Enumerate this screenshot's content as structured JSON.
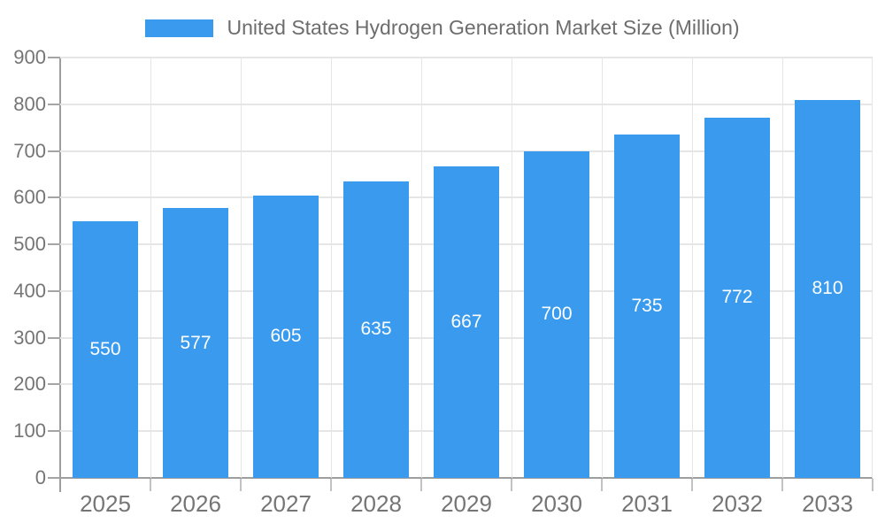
{
  "legend": {
    "label": "United States Hydrogen Generation Market Size (Million)",
    "swatch_color": "#399AEE"
  },
  "chart_data": {
    "type": "bar",
    "title": "United States Hydrogen Generation Market Size (Million)",
    "categories": [
      "2025",
      "2026",
      "2027",
      "2028",
      "2029",
      "2030",
      "2031",
      "2032",
      "2033"
    ],
    "values": [
      550,
      577,
      605,
      635,
      667,
      700,
      735,
      772,
      810
    ],
    "xlabel": "",
    "ylabel": "",
    "ylim": [
      0,
      900
    ],
    "yticks": [
      0,
      100,
      200,
      300,
      400,
      500,
      600,
      700,
      800,
      900
    ],
    "grid": true,
    "legend_position": "top",
    "colors": {
      "bar": "#399AEE",
      "bar_label": "#FFFFFF",
      "axis_text": "#757575",
      "legend_text": "#6D6D6D",
      "grid": "#E6E6E6",
      "axis_line": "#9E9E9E",
      "y_tick": "#A5A5A5",
      "x_tick": "#C2C2C2",
      "background": "#FFFFFF"
    }
  }
}
